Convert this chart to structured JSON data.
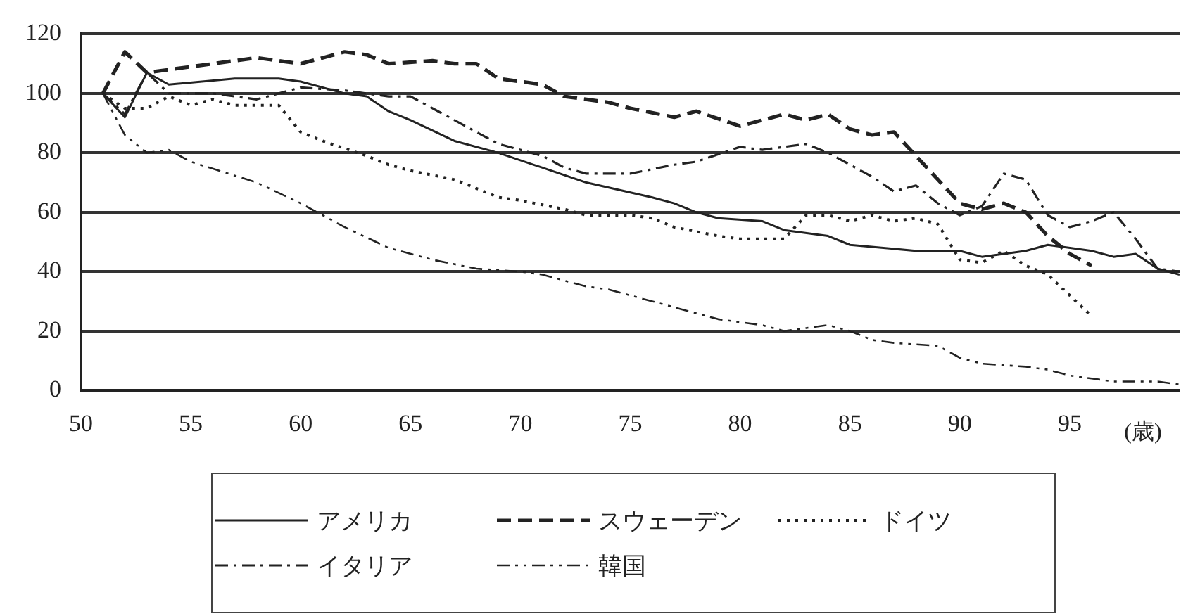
{
  "chart_data": {
    "type": "line",
    "xlabel": "(歳)",
    "xlim": [
      50,
      100
    ],
    "xticks": [
      50,
      55,
      60,
      65,
      70,
      75,
      80,
      85,
      90,
      95
    ],
    "ylim": [
      0,
      120
    ],
    "yticks": [
      0,
      20,
      40,
      60,
      80,
      100,
      120
    ],
    "grid": "y",
    "legend": "bottom",
    "marker": "none",
    "series": [
      {
        "name": "アメリカ",
        "color": "#222222",
        "line_style": "solid",
        "x": [
          51,
          52,
          53,
          54,
          57,
          59,
          60,
          62,
          63,
          64,
          65,
          67,
          69,
          71,
          73,
          76,
          77,
          78,
          79,
          81,
          82,
          84,
          85,
          88,
          90,
          91,
          93,
          94,
          96,
          97,
          98,
          99,
          100
        ],
        "values": [
          100,
          92,
          107,
          103,
          105,
          105,
          104,
          100,
          99,
          94,
          91,
          84,
          80,
          75,
          70,
          65,
          63,
          60,
          58,
          57,
          54,
          52,
          49,
          47,
          47,
          45,
          47,
          49,
          47,
          45,
          46,
          41,
          39
        ]
      },
      {
        "name": "スウェーデン",
        "color": "#222222",
        "line_style": "dashed",
        "x": [
          51,
          52,
          53,
          55,
          56,
          58,
          60,
          62,
          63,
          64,
          66,
          67,
          68,
          69,
          71,
          72,
          74,
          75,
          77,
          78,
          80,
          82,
          83,
          84,
          85,
          86,
          87,
          88,
          89,
          90,
          91,
          92,
          93,
          94,
          95,
          96
        ],
        "values": [
          100,
          114,
          107,
          109,
          110,
          112,
          110,
          114,
          113,
          110,
          111,
          110,
          110,
          105,
          103,
          99,
          97,
          95,
          92,
          94,
          89,
          93,
          91,
          93,
          88,
          86,
          87,
          79,
          71,
          63,
          61,
          63,
          60,
          52,
          46,
          42
        ]
      },
      {
        "name": "ドイツ",
        "color": "#222222",
        "line_style": "dotted",
        "x": [
          51,
          52,
          53,
          54,
          55,
          56,
          57,
          58,
          59,
          60,
          61,
          63,
          64,
          65,
          67,
          69,
          70,
          72,
          73,
          75,
          76,
          77,
          79,
          80,
          82,
          83,
          84,
          85,
          86,
          87,
          88,
          89,
          90,
          91,
          92,
          93,
          94,
          95,
          96
        ],
        "values": [
          100,
          95,
          95,
          99,
          96,
          98,
          96,
          96,
          96,
          87,
          84,
          79,
          76,
          74,
          71,
          65,
          64,
          61,
          59,
          59,
          58,
          55,
          52,
          51,
          51,
          59,
          59,
          57,
          59,
          57,
          58,
          56,
          44,
          43,
          47,
          42,
          39,
          32,
          25
        ]
      },
      {
        "name": "イタリア",
        "color": "#222222",
        "line_style": "dashdot",
        "x": [
          51,
          52,
          53,
          54,
          56,
          58,
          60,
          62,
          64,
          65,
          67,
          69,
          71,
          72,
          73,
          75,
          77,
          78,
          80,
          81,
          82,
          83,
          84,
          85,
          86,
          87,
          88,
          89,
          90,
          91,
          92,
          93,
          94,
          95,
          96,
          97,
          98,
          99,
          100
        ],
        "values": [
          100,
          93,
          107,
          100,
          100,
          98,
          102,
          101,
          99,
          99,
          91,
          83,
          79,
          75,
          73,
          73,
          76,
          77,
          82,
          81,
          82,
          83,
          80,
          76,
          72,
          67,
          69,
          63,
          59,
          62,
          73,
          71,
          59,
          55,
          57,
          60,
          51,
          41,
          40
        ]
      },
      {
        "name": "韓国",
        "color": "#222222",
        "line_style": "dashdotdot",
        "x": [
          51,
          52,
          53,
          54,
          55,
          58,
          60,
          62,
          64,
          66,
          68,
          70,
          71,
          73,
          74,
          76,
          77,
          79,
          81,
          82,
          83,
          84,
          85,
          86,
          87,
          89,
          90,
          91,
          93,
          94,
          95,
          96,
          97,
          98,
          99,
          100
        ],
        "values": [
          100,
          86,
          80,
          81,
          77,
          70,
          63,
          55,
          48,
          44,
          41,
          40,
          39,
          35,
          34,
          30,
          28,
          24,
          22,
          20,
          21,
          22,
          20,
          17,
          16,
          15,
          11,
          9,
          8,
          7,
          5,
          4,
          3,
          3,
          3,
          2
        ]
      }
    ]
  }
}
